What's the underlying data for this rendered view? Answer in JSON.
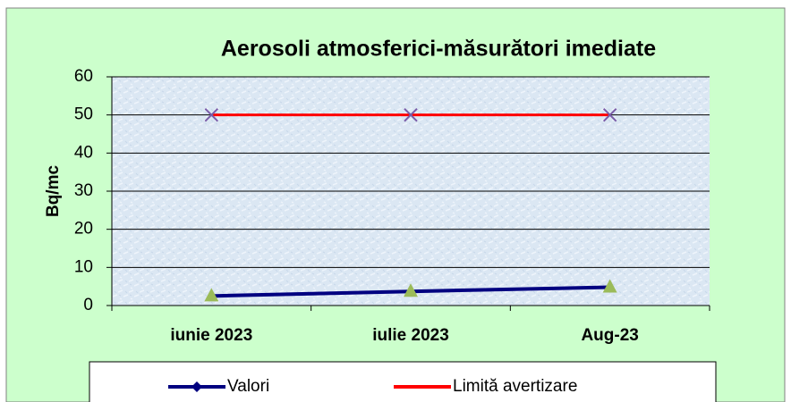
{
  "chart_data": {
    "type": "line",
    "title": "Aerosoli atmosferici-măsurători imediate",
    "y_label": "Bq/mc",
    "categories": [
      "iunie 2023",
      "iulie 2023",
      "Aug-23"
    ],
    "series": [
      {
        "name": "Valori",
        "color": "#000080",
        "marker_color": "#9bbb59",
        "values": [
          2.5,
          3.7,
          4.8
        ]
      },
      {
        "name": "Limită avertizare",
        "color": "#ff0000",
        "marker_color": "#7a5ca8",
        "values": [
          50,
          50,
          50
        ]
      }
    ],
    "ylim": [
      0,
      60
    ],
    "yticks": [
      0,
      10,
      20,
      30,
      40,
      50,
      60
    ],
    "grid": true,
    "legend": "bottom"
  }
}
